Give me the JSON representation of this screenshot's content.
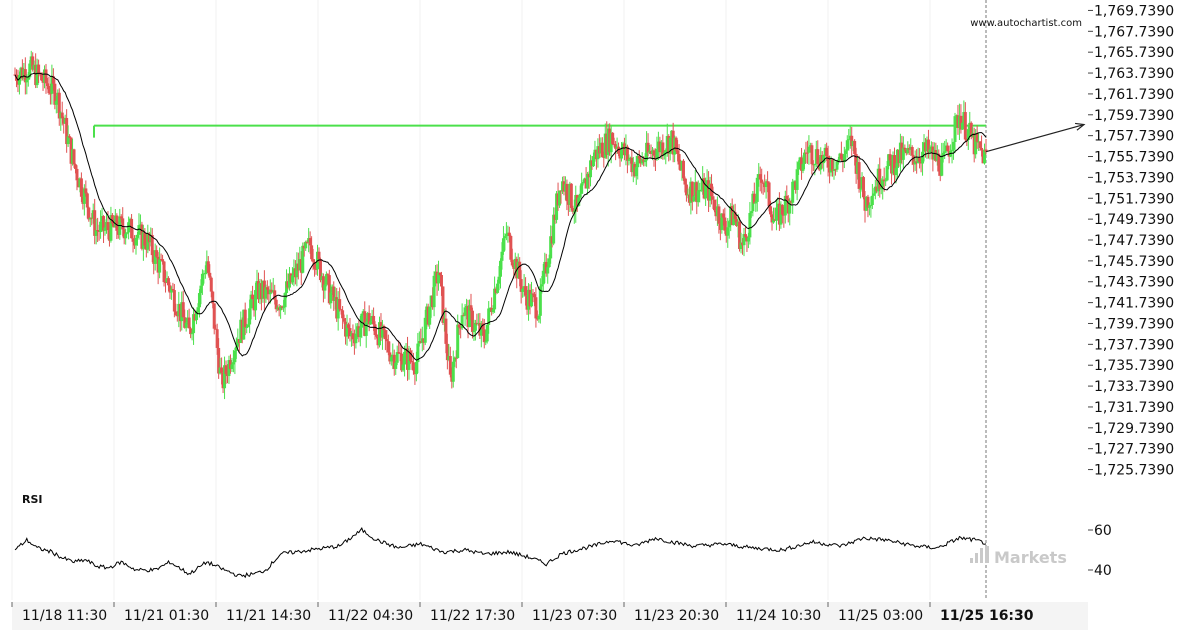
{
  "chart_data": [
    {
      "type": "candlestick",
      "source_label": "www.autochartist.com",
      "ylim": [
        1724.739,
        1770.739
      ],
      "y_ticks": [
        "1,769.7390",
        "1,767.7390",
        "1,765.7390",
        "1,763.7390",
        "1,761.7390",
        "1,759.7390",
        "1,757.7390",
        "1,755.7390",
        "1,753.7390",
        "1,751.7390",
        "1,749.7390",
        "1,747.7390",
        "1,745.7390",
        "1,743.7390",
        "1,741.7390",
        "1,739.7390",
        "1,737.7390",
        "1,735.7390",
        "1,733.7390",
        "1,731.7390",
        "1,729.7390",
        "1,727.7390",
        "1,725.7390"
      ],
      "x_ticks": [
        "11/18 11:30",
        "11/21 01:30",
        "11/21 14:30",
        "11/22 04:30",
        "11/22 17:30",
        "11/23 07:30",
        "11/23 20:30",
        "11/24 10:30",
        "11/25 03:00",
        "11/25 16:30"
      ],
      "x_tick_bold_index": 9,
      "resistance_level": 1758.7,
      "forecast_target": 1758.8,
      "colors": {
        "up": "#4be04b",
        "down": "#e05252",
        "resistance": "#4be04b",
        "moving_average": "#000000"
      },
      "candle_anchors": [
        [
          0,
          1763.6
        ],
        [
          10,
          1764.2
        ],
        [
          20,
          1762.9
        ],
        [
          28,
          1761.8
        ],
        [
          40,
          1755.0
        ],
        [
          55,
          1748.7
        ],
        [
          75,
          1749.0
        ],
        [
          90,
          1747.6
        ],
        [
          105,
          1743.2
        ],
        [
          118,
          1738.8
        ],
        [
          130,
          1745.8
        ],
        [
          140,
          1733.8
        ],
        [
          150,
          1738.2
        ],
        [
          165,
          1742.9
        ],
        [
          180,
          1741.8
        ],
        [
          200,
          1747.3
        ],
        [
          213,
          1742.8
        ],
        [
          227,
          1738.5
        ],
        [
          240,
          1740.2
        ],
        [
          256,
          1736.7
        ],
        [
          272,
          1736.1
        ],
        [
          287,
          1744.8
        ],
        [
          295,
          1734.2
        ],
        [
          303,
          1741.2
        ],
        [
          318,
          1738.3
        ],
        [
          333,
          1748.4
        ],
        [
          345,
          1742.6
        ],
        [
          355,
          1741.2
        ],
        [
          370,
          1753.6
        ],
        [
          381,
          1750.5
        ],
        [
          392,
          1755.8
        ],
        [
          404,
          1757.6
        ],
        [
          420,
          1754.8
        ],
        [
          434,
          1756.5
        ],
        [
          445,
          1757.4
        ],
        [
          455,
          1752.6
        ],
        [
          470,
          1752.5
        ],
        [
          481,
          1748.9
        ],
        [
          487,
          1750.3
        ],
        [
          493,
          1747.0
        ],
        [
          506,
          1754.2
        ],
        [
          515,
          1749.5
        ],
        [
          525,
          1751.8
        ],
        [
          537,
          1756.5
        ],
        [
          550,
          1755.2
        ],
        [
          560,
          1755.5
        ],
        [
          567,
          1757.2
        ],
        [
          576,
          1751.3
        ],
        [
          587,
          1754.0
        ],
        [
          600,
          1755.8
        ],
        [
          609,
          1755.8
        ],
        [
          618,
          1756.2
        ],
        [
          629,
          1754.9
        ],
        [
          640,
          1759.8
        ],
        [
          650,
          1756.9
        ],
        [
          658,
          1755.6
        ]
      ],
      "rsi": {
        "title": "RSI",
        "y_ticks": [
          "60",
          "40"
        ],
        "ylim": [
          30,
          70
        ],
        "anchors": [
          [
            0,
            50
          ],
          [
            8,
            55
          ],
          [
            15,
            51
          ],
          [
            25,
            49
          ],
          [
            32,
            46
          ],
          [
            40,
            44
          ],
          [
            48,
            45
          ],
          [
            55,
            42
          ],
          [
            63,
            41
          ],
          [
            72,
            44
          ],
          [
            82,
            40
          ],
          [
            95,
            40
          ],
          [
            105,
            44
          ],
          [
            118,
            38
          ],
          [
            130,
            44
          ],
          [
            142,
            40
          ],
          [
            152,
            37
          ],
          [
            162,
            38
          ],
          [
            170,
            40
          ],
          [
            180,
            48
          ],
          [
            200,
            50
          ],
          [
            220,
            52
          ],
          [
            235,
            60
          ],
          [
            245,
            55
          ],
          [
            260,
            51
          ],
          [
            275,
            53
          ],
          [
            290,
            49
          ],
          [
            305,
            50
          ],
          [
            318,
            48
          ],
          [
            335,
            49
          ],
          [
            350,
            46
          ],
          [
            360,
            43
          ],
          [
            370,
            48
          ],
          [
            380,
            50
          ],
          [
            392,
            52
          ],
          [
            405,
            55
          ],
          [
            420,
            52
          ],
          [
            434,
            56
          ],
          [
            445,
            54
          ],
          [
            460,
            52
          ],
          [
            480,
            53
          ],
          [
            500,
            51
          ],
          [
            520,
            50
          ],
          [
            540,
            54
          ],
          [
            560,
            52
          ],
          [
            575,
            56
          ],
          [
            590,
            55
          ],
          [
            610,
            52
          ],
          [
            625,
            51
          ],
          [
            640,
            56
          ],
          [
            650,
            55
          ],
          [
            660,
            53
          ]
        ]
      }
    }
  ],
  "brand_text": "Markets",
  "brand_icon": "ic-markets-logo-icon"
}
